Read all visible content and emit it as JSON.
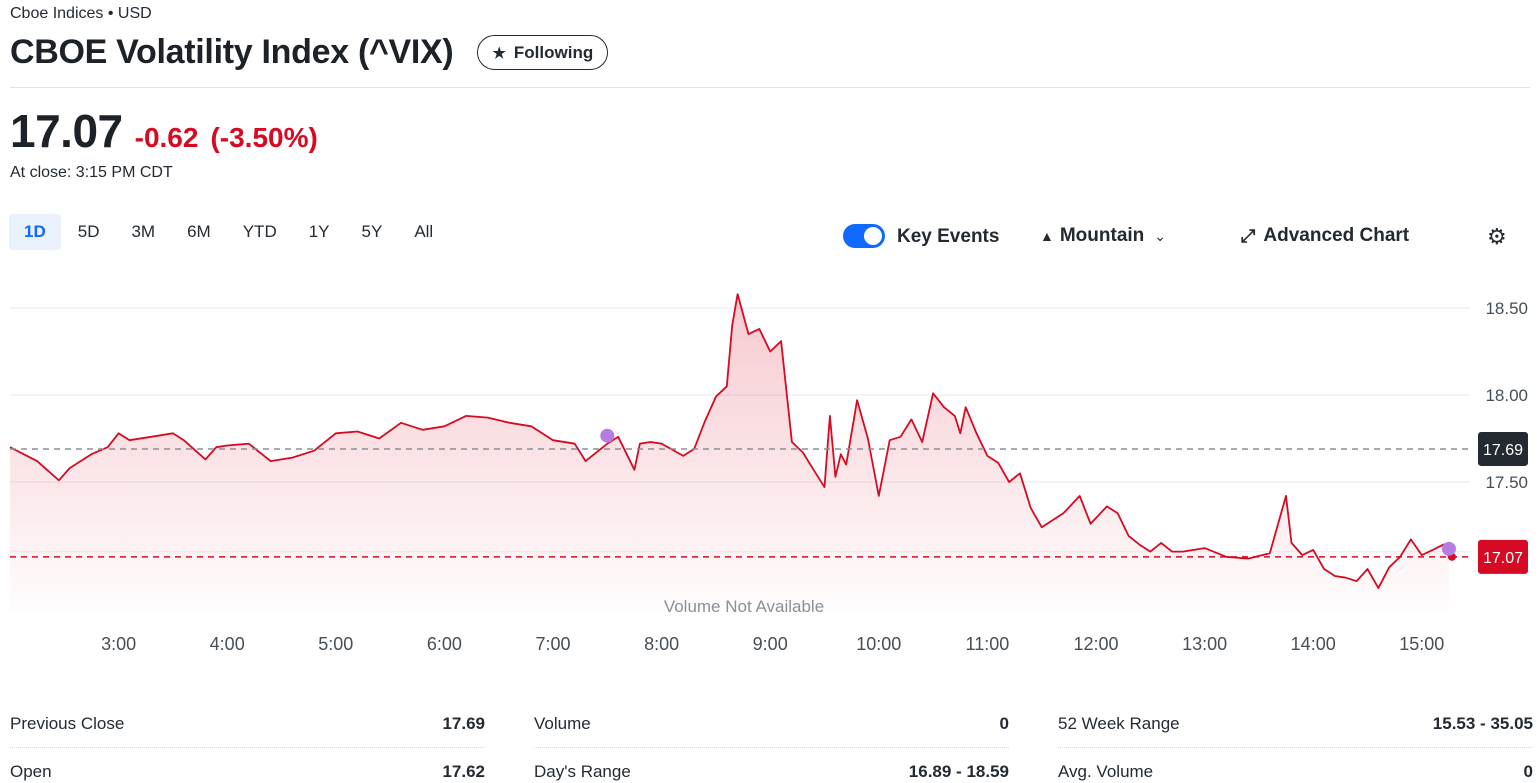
{
  "header": {
    "exchange": "Cboe Indices • USD",
    "title": "CBOE Volatility Index (^VIX)",
    "follow_label": "Following",
    "price": "17.07",
    "change": "-0.62",
    "change_pct": "(-3.50%)",
    "close_time": "At close: 3:15 PM CDT"
  },
  "ranges": [
    "1D",
    "5D",
    "3M",
    "6M",
    "YTD",
    "1Y",
    "5Y",
    "All"
  ],
  "active_range": "1D",
  "toolbar": {
    "key_events_label": "Key Events",
    "key_events_on": true,
    "chart_type_label": "Mountain",
    "advanced_label": "Advanced Chart"
  },
  "colors": {
    "line": "#d60a22",
    "up": "#0f69ff",
    "event": "#b57de3",
    "prev_close_badge": "#232a31"
  },
  "chart_data": {
    "type": "area",
    "title": "",
    "xlabel": "",
    "ylabel": "",
    "x_ticks": [
      "3:00",
      "4:00",
      "5:00",
      "6:00",
      "7:00",
      "8:00",
      "9:00",
      "10:00",
      "11:00",
      "12:00",
      "13:00",
      "14:00",
      "15:00"
    ],
    "y_ticks": [
      "18.50",
      "18.00",
      "17.50"
    ],
    "ylim": [
      16.85,
      18.67
    ],
    "previous_close": 17.69,
    "previous_close_label": "17.69",
    "last_price": 17.07,
    "last_price_label": "17.07",
    "volume_note": "Volume Not Available",
    "key_events_hours": [
      7.5,
      15.25
    ],
    "series": [
      {
        "x": [
          2.0,
          2.25,
          2.45,
          2.55,
          2.75,
          2.9,
          3.0,
          3.1,
          3.3,
          3.5,
          3.6,
          3.8,
          3.9,
          4.0,
          4.2,
          4.4,
          4.6,
          4.8,
          5.0,
          5.2,
          5.4,
          5.6,
          5.8,
          6.0,
          6.2,
          6.4,
          6.6,
          6.8,
          7.0,
          7.2,
          7.3,
          7.5,
          7.6,
          7.75,
          7.8,
          7.9,
          8.0,
          8.2,
          8.3,
          8.4,
          8.5,
          8.6,
          8.65,
          8.7,
          8.8,
          8.9,
          9.0,
          9.1,
          9.2,
          9.3,
          9.4,
          9.5,
          9.55,
          9.6,
          9.65,
          9.7,
          9.8,
          9.9,
          10.0,
          10.1,
          10.2,
          10.3,
          10.4,
          10.5,
          10.6,
          10.7,
          10.75,
          10.8,
          10.9,
          11.0,
          11.1,
          11.2,
          11.3,
          11.4,
          11.5,
          11.7,
          11.85,
          11.95,
          12.1,
          12.2,
          12.3,
          12.4,
          12.5,
          12.6,
          12.7,
          12.8,
          13.0,
          13.2,
          13.4,
          13.6,
          13.75,
          13.8,
          13.9,
          14.0,
          14.1,
          14.2,
          14.3,
          14.4,
          14.5,
          14.6,
          14.7,
          14.8,
          14.9,
          15.0,
          15.1,
          15.2,
          15.25
        ],
        "y": [
          17.7,
          17.62,
          17.51,
          17.58,
          17.66,
          17.7,
          17.78,
          17.74,
          17.76,
          17.78,
          17.74,
          17.63,
          17.7,
          17.71,
          17.72,
          17.62,
          17.64,
          17.68,
          17.78,
          17.79,
          17.75,
          17.84,
          17.8,
          17.82,
          17.88,
          17.87,
          17.84,
          17.82,
          17.74,
          17.72,
          17.62,
          17.72,
          17.76,
          17.57,
          17.72,
          17.73,
          17.72,
          17.65,
          17.69,
          17.85,
          17.99,
          18.05,
          18.4,
          18.58,
          18.35,
          18.38,
          18.25,
          18.31,
          17.73,
          17.67,
          17.57,
          17.47,
          17.88,
          17.53,
          17.66,
          17.6,
          17.97,
          17.75,
          17.42,
          17.74,
          17.76,
          17.86,
          17.73,
          18.01,
          17.93,
          17.88,
          17.78,
          17.93,
          17.78,
          17.65,
          17.61,
          17.5,
          17.55,
          17.35,
          17.24,
          17.32,
          17.42,
          17.26,
          17.36,
          17.32,
          17.19,
          17.14,
          17.1,
          17.15,
          17.1,
          17.1,
          17.12,
          17.07,
          17.06,
          17.09,
          17.42,
          17.15,
          17.08,
          17.11,
          17.0,
          16.96,
          16.95,
          16.93,
          17.0,
          16.89,
          17.01,
          17.07,
          17.17,
          17.08,
          17.11,
          17.14,
          17.07
        ]
      }
    ]
  },
  "stats": [
    [
      {
        "label": "Previous Close",
        "value": "17.69"
      },
      {
        "label": "Open",
        "value": "17.62"
      }
    ],
    [
      {
        "label": "Volume",
        "value": "0"
      },
      {
        "label": "Day's Range",
        "value": "16.89 - 18.59"
      }
    ],
    [
      {
        "label": "52 Week Range",
        "value": "15.53 - 35.05"
      },
      {
        "label": "Avg. Volume",
        "value": "0"
      }
    ]
  ]
}
